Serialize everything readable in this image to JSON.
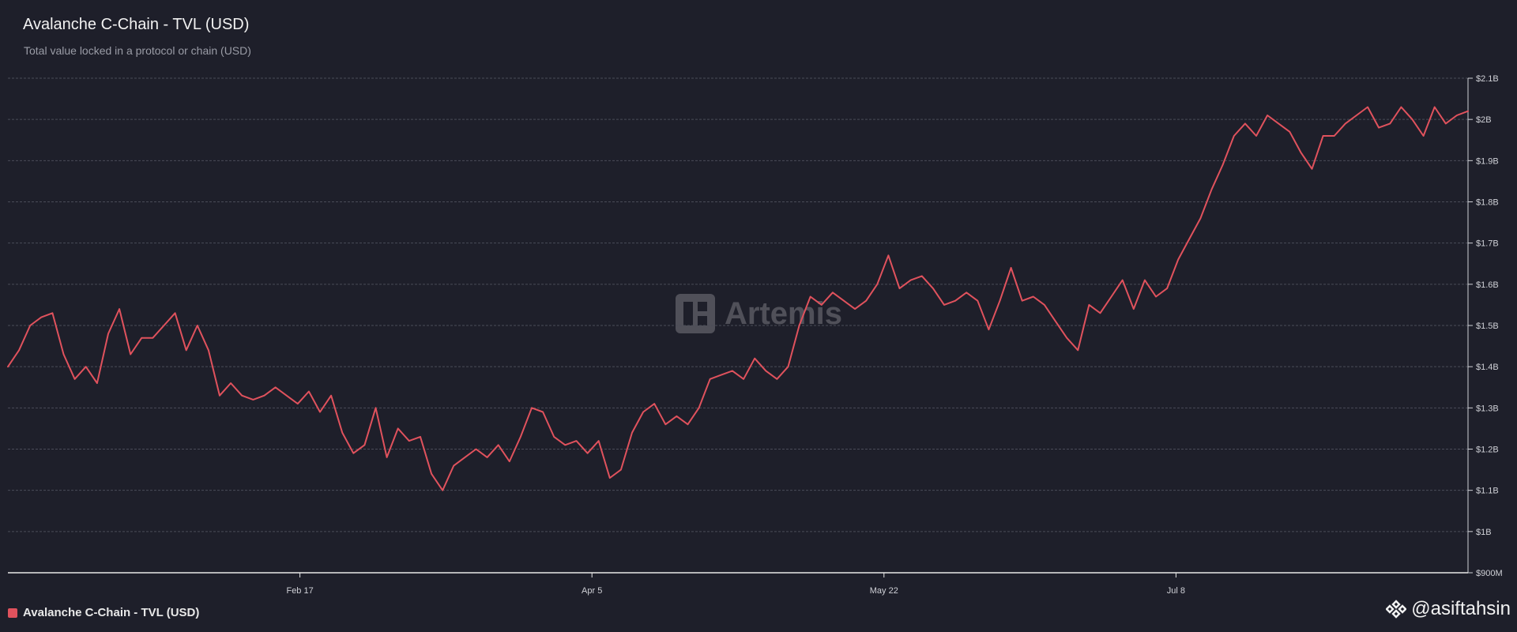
{
  "header": {
    "title": "Avalanche C-Chain - TVL (USD)",
    "subtitle": "Total value locked in a protocol or chain (USD)"
  },
  "watermark": {
    "text": "Artemis"
  },
  "legend": {
    "label": "Avalanche C-Chain - TVL (USD)",
    "color": "#e0525d"
  },
  "credit": {
    "text": "@asiftahsin",
    "icon": "binance-logo-icon"
  },
  "chart_data": {
    "type": "line",
    "title": "Avalanche C-Chain - TVL (USD)",
    "subtitle": "Total value locked in a protocol or chain (USD)",
    "xlabel": "",
    "ylabel": "",
    "ylim": [
      900000000,
      2100000000
    ],
    "y_ticks": [
      {
        "value": 2100000000,
        "label": "$2.1B"
      },
      {
        "value": 2000000000,
        "label": "$2B"
      },
      {
        "value": 1900000000,
        "label": "$1.9B"
      },
      {
        "value": 1800000000,
        "label": "$1.8B"
      },
      {
        "value": 1700000000,
        "label": "$1.7B"
      },
      {
        "value": 1600000000,
        "label": "$1.6B"
      },
      {
        "value": 1500000000,
        "label": "$1.5B"
      },
      {
        "value": 1400000000,
        "label": "$1.4B"
      },
      {
        "value": 1300000000,
        "label": "$1.3B"
      },
      {
        "value": 1200000000,
        "label": "$1.2B"
      },
      {
        "value": 1100000000,
        "label": "$1.1B"
      },
      {
        "value": 1000000000,
        "label": "$1B"
      },
      {
        "value": 900000000,
        "label": "$900M"
      }
    ],
    "x_ticks": [
      "Feb 17",
      "Apr 5",
      "May 22",
      "Jul 8"
    ],
    "grid": true,
    "legend_position": "bottom-left",
    "series": [
      {
        "name": "Avalanche C-Chain - TVL (USD)",
        "color": "#e0525d",
        "values": [
          1.4,
          1.44,
          1.5,
          1.52,
          1.53,
          1.43,
          1.37,
          1.4,
          1.36,
          1.48,
          1.54,
          1.43,
          1.47,
          1.47,
          1.5,
          1.53,
          1.44,
          1.5,
          1.44,
          1.33,
          1.36,
          1.33,
          1.32,
          1.33,
          1.35,
          1.33,
          1.31,
          1.34,
          1.29,
          1.33,
          1.24,
          1.19,
          1.21,
          1.3,
          1.18,
          1.25,
          1.22,
          1.23,
          1.14,
          1.1,
          1.16,
          1.18,
          1.2,
          1.18,
          1.21,
          1.17,
          1.23,
          1.3,
          1.29,
          1.23,
          1.21,
          1.22,
          1.19,
          1.22,
          1.13,
          1.15,
          1.24,
          1.29,
          1.31,
          1.26,
          1.28,
          1.26,
          1.3,
          1.37,
          1.38,
          1.39,
          1.37,
          1.42,
          1.39,
          1.37,
          1.4,
          1.5,
          1.57,
          1.55,
          1.58,
          1.56,
          1.54,
          1.56,
          1.6,
          1.67,
          1.59,
          1.61,
          1.62,
          1.59,
          1.55,
          1.56,
          1.58,
          1.56,
          1.49,
          1.56,
          1.64,
          1.56,
          1.57,
          1.55,
          1.51,
          1.47,
          1.44,
          1.55,
          1.53,
          1.57,
          1.61,
          1.54,
          1.61,
          1.57,
          1.59,
          1.66,
          1.71,
          1.76,
          1.83,
          1.89,
          1.96,
          1.99,
          1.96,
          2.01,
          1.99,
          1.97,
          1.92,
          1.88,
          1.96,
          1.96,
          1.99,
          2.01,
          2.03,
          1.98,
          1.99,
          2.03,
          2.0,
          1.96,
          2.03,
          1.99,
          2.01,
          2.02
        ]
      }
    ]
  }
}
